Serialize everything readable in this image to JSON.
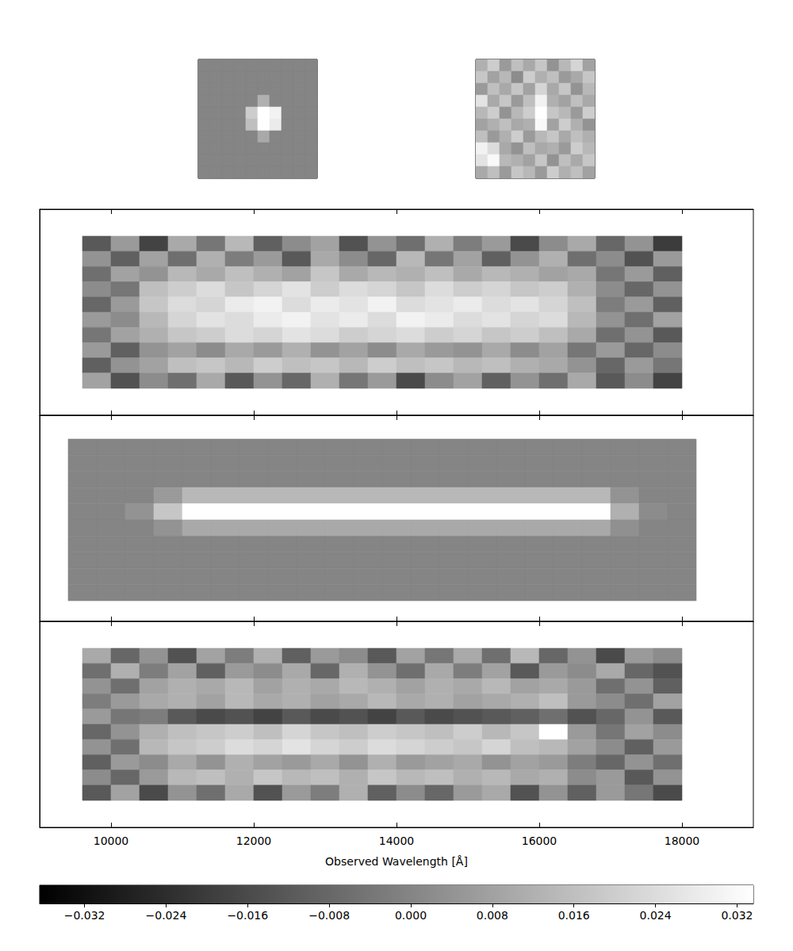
{
  "chart_data": {
    "type": "image",
    "xlabel": "Observed Wavelength [Å]",
    "xlim": [
      9000,
      19000
    ],
    "xticks": [
      10000,
      12000,
      14000,
      16000,
      18000
    ],
    "ylim": [
      0,
      13
    ],
    "tick_labels": "x",
    "colorbar": {
      "clim": [
        -0.0364,
        0.0336
      ],
      "ticks": [
        {
          "value": -0.032,
          "label": "−0.032"
        },
        {
          "value": -0.024,
          "label": "−0.024"
        },
        {
          "value": -0.016,
          "label": "−0.016"
        },
        {
          "value": -0.008,
          "label": "−0.008"
        },
        {
          "value": 0,
          "label": "0.000"
        },
        0.008,
        0.016,
        0.024,
        0.032
      ]
    },
    "stamps": [
      {
        "cells": [
          [
            0,
            0,
            0,
            0,
            0,
            0,
            0,
            0,
            0,
            0
          ],
          [
            0,
            0,
            0,
            0,
            0,
            0,
            0,
            0,
            0,
            0
          ],
          [
            0,
            0,
            0,
            0,
            0,
            0,
            0,
            0,
            0,
            0
          ],
          [
            0,
            0,
            0,
            0,
            0,
            0.012,
            0,
            0,
            0,
            0
          ],
          [
            0,
            0,
            0,
            0,
            0.02,
            0.04,
            0.03,
            0,
            0,
            0
          ],
          [
            0,
            0,
            0,
            0,
            0.016,
            0.04,
            0.028,
            0,
            0,
            0
          ],
          [
            0,
            0,
            0,
            0,
            0,
            0.01,
            0,
            0,
            0,
            0
          ],
          [
            0,
            0,
            0,
            0,
            0,
            0,
            0,
            0,
            0,
            0
          ],
          [
            0,
            0,
            0,
            0,
            0,
            0,
            0,
            0,
            0,
            0
          ],
          [
            0,
            0,
            0,
            0,
            0,
            0,
            0,
            0,
            0,
            0
          ]
        ]
      },
      {
        "cells": [
          [
            0.012,
            0.02,
            0.006,
            0.016,
            0.01,
            0.018,
            0.004,
            0.014,
            0.022,
            0.008
          ],
          [
            0.018,
            0.008,
            0.014,
            0.002,
            0.02,
            0.012,
            0.016,
            0.006,
            0.01,
            0.018
          ],
          [
            0.006,
            0.016,
            0.01,
            0.018,
            0.008,
            0.022,
            0.01,
            0.018,
            0.004,
            0.014
          ],
          [
            0.026,
            0.01,
            0.018,
            0.006,
            0.016,
            0.03,
            0.012,
            0.008,
            0.016,
            0.01
          ],
          [
            0.014,
            0.02,
            0.004,
            0.014,
            0.02,
            0.034,
            0.018,
            0.014,
            0.006,
            0.02
          ],
          [
            0.008,
            0.012,
            0.016,
            0.01,
            0.012,
            0.032,
            0.008,
            0.02,
            0.012,
            0.004
          ],
          [
            0.016,
            0.006,
            0.012,
            0.02,
            0.006,
            0.014,
            0.018,
            0.01,
            0.016,
            0.012
          ],
          [
            0.03,
            0.024,
            0.01,
            0.004,
            0.016,
            0.01,
            0.012,
            0.006,
            0.02,
            0.014
          ],
          [
            0.026,
            0.032,
            0.014,
            0.012,
            0.008,
            0.018,
            0.004,
            0.016,
            0.01,
            0.018
          ],
          [
            0.01,
            0.016,
            0.006,
            0.018,
            0.014,
            0.006,
            0.02,
            0.012,
            0.016,
            0.008
          ]
        ]
      }
    ],
    "panels": [
      {
        "extent": [
          9600,
          18000,
          1.7,
          11.3
        ],
        "cells": [
          [
            -0.012,
            0.006,
            -0.018,
            0.01,
            -0.004,
            0.014,
            -0.01,
            0.002,
            0.008,
            -0.014,
            0.004,
            -0.006,
            0.012,
            -0.002,
            0.006,
            -0.016,
            0.002,
            0.01,
            -0.008,
            0.004,
            -0.02
          ],
          [
            0.004,
            -0.01,
            0.008,
            -0.006,
            0.012,
            -0.002,
            0.006,
            -0.012,
            0.01,
            0.002,
            -0.008,
            0.014,
            -0.004,
            0.008,
            -0.01,
            0.004,
            0.012,
            -0.006,
            0.002,
            -0.014,
            0.006
          ],
          [
            -0.006,
            0.008,
            0.004,
            0.014,
            0.01,
            0.016,
            0.012,
            0.008,
            0.018,
            0.01,
            0.014,
            0.012,
            0.016,
            0.01,
            0.014,
            0.012,
            0.008,
            0.01,
            -0.004,
            0.006,
            -0.01
          ],
          [
            0.002,
            -0.004,
            0.016,
            0.02,
            0.024,
            0.018,
            0.022,
            0.026,
            0.02,
            0.024,
            0.022,
            0.018,
            0.024,
            0.02,
            0.022,
            0.018,
            0.02,
            0.012,
            0.002,
            -0.008,
            0.004
          ],
          [
            -0.008,
            0.006,
            0.018,
            0.024,
            0.022,
            0.028,
            0.03,
            0.024,
            0.028,
            0.026,
            0.03,
            0.024,
            0.026,
            0.028,
            0.024,
            0.026,
            0.022,
            0.016,
            -0.002,
            0.006,
            -0.01
          ],
          [
            0.006,
            0.002,
            0.014,
            0.022,
            0.026,
            0.024,
            0.028,
            0.03,
            0.026,
            0.028,
            0.024,
            0.03,
            0.028,
            0.024,
            0.026,
            0.022,
            0.024,
            0.014,
            0.004,
            -0.006,
            0.008
          ],
          [
            -0.004,
            0.008,
            0.012,
            0.018,
            0.02,
            0.024,
            0.022,
            0.026,
            0.024,
            0.02,
            0.022,
            0.024,
            0.02,
            0.022,
            0.018,
            0.02,
            0.016,
            0.01,
            -0.006,
            0.004,
            -0.012
          ],
          [
            0.006,
            -0.01,
            0.004,
            0.008,
            0.002,
            0.01,
            0.006,
            0.012,
            0.004,
            0.008,
            0.002,
            0.01,
            0.006,
            0.004,
            0.01,
            0.002,
            0.008,
            -0.004,
            0.006,
            -0.008,
            0.002
          ],
          [
            -0.01,
            0.004,
            0.008,
            0.016,
            0.018,
            0.014,
            0.02,
            0.016,
            0.018,
            0.014,
            0.02,
            0.016,
            0.018,
            0.014,
            0.016,
            0.012,
            0.01,
            0.004,
            -0.008,
            0.006,
            -0.004
          ],
          [
            0.008,
            -0.014,
            0.002,
            -0.006,
            0.01,
            -0.012,
            0.004,
            -0.008,
            0.012,
            -0.004,
            0.006,
            -0.016,
            0.002,
            0.008,
            -0.01,
            0.004,
            -0.006,
            0.01,
            -0.012,
            0.002,
            -0.018
          ]
        ]
      },
      {
        "extent": [
          9400,
          18200,
          1.3,
          11.5
        ],
        "cells": [
          [
            0,
            0,
            0,
            0,
            0,
            0,
            0,
            0,
            0,
            0,
            0,
            0,
            0,
            0,
            0,
            0,
            0,
            0,
            0,
            0,
            0,
            0
          ],
          [
            0,
            0,
            0,
            0,
            0,
            0,
            0,
            0,
            0,
            0,
            0,
            0,
            0,
            0,
            0,
            0,
            0,
            0,
            0,
            0,
            0,
            0
          ],
          [
            0,
            0,
            0,
            0,
            0,
            0,
            0,
            0,
            0,
            0,
            0,
            0,
            0,
            0,
            0,
            0,
            0,
            0,
            0,
            0,
            0,
            0
          ],
          [
            0,
            0,
            0,
            0.006,
            0.014,
            0.014,
            0.014,
            0.014,
            0.014,
            0.014,
            0.014,
            0.014,
            0.014,
            0.014,
            0.014,
            0.014,
            0.014,
            0.014,
            0.014,
            0.004,
            0,
            0
          ],
          [
            0,
            0,
            0.004,
            0.018,
            0.034,
            0.034,
            0.034,
            0.034,
            0.034,
            0.034,
            0.034,
            0.034,
            0.034,
            0.034,
            0.034,
            0.034,
            0.034,
            0.034,
            0.034,
            0.012,
            0.002,
            0
          ],
          [
            0,
            0,
            0,
            0.004,
            0.01,
            0.01,
            0.01,
            0.01,
            0.01,
            0.01,
            0.01,
            0.01,
            0.01,
            0.01,
            0.01,
            0.01,
            0.01,
            0.01,
            0.01,
            0.003,
            0,
            0
          ],
          [
            0,
            0,
            0,
            0,
            0,
            0,
            0,
            0,
            0,
            0,
            0,
            0,
            0,
            0,
            0,
            0,
            0,
            0,
            0,
            0,
            0,
            0
          ],
          [
            0,
            0,
            0,
            0,
            0,
            0,
            0,
            0,
            0,
            0,
            0,
            0,
            0,
            0,
            0,
            0,
            0,
            0,
            0,
            0,
            0,
            0
          ],
          [
            0,
            0,
            0,
            0,
            0,
            0,
            0,
            0,
            0,
            0,
            0,
            0,
            0,
            0,
            0,
            0,
            0,
            0,
            0,
            0,
            0,
            0
          ],
          [
            0,
            0,
            0,
            0,
            0,
            0,
            0,
            0,
            0,
            0,
            0,
            0,
            0,
            0,
            0,
            0,
            0,
            0,
            0,
            0,
            0,
            0
          ]
        ]
      },
      {
        "extent": [
          9600,
          18000,
          1.7,
          11.3
        ],
        "cells": [
          [
            0.01,
            -0.008,
            0.004,
            -0.014,
            0.008,
            -0.002,
            0.012,
            -0.01,
            0.006,
            0.002,
            -0.012,
            0.008,
            -0.004,
            0.01,
            -0.006,
            0.014,
            -0.008,
            0.004,
            -0.016,
            0.006,
            0.002
          ],
          [
            -0.006,
            0.012,
            -0.002,
            0.008,
            -0.01,
            0.006,
            0.002,
            0.01,
            -0.008,
            0.012,
            0.004,
            -0.006,
            0.01,
            -0.002,
            0.008,
            -0.012,
            0.006,
            0.002,
            0.01,
            -0.008,
            -0.014
          ],
          [
            0.004,
            -0.006,
            0.008,
            0.012,
            0.01,
            0.014,
            0.008,
            0.012,
            0.01,
            0.014,
            0.012,
            0.008,
            0.012,
            0.01,
            0.014,
            0.008,
            0.01,
            0.006,
            -0.006,
            0.004,
            -0.01
          ],
          [
            -0.002,
            0.006,
            0.01,
            0.012,
            0.008,
            0.014,
            0.01,
            0.012,
            0.008,
            0.01,
            0.014,
            0.01,
            0.012,
            0.008,
            0.01,
            0.012,
            0.016,
            0.006,
            0.002,
            -0.006,
            0.008
          ],
          [
            0.006,
            -0.004,
            -0.002,
            -0.012,
            -0.016,
            -0.014,
            -0.018,
            -0.012,
            -0.016,
            -0.014,
            -0.018,
            -0.012,
            -0.016,
            -0.014,
            -0.012,
            -0.01,
            -0.006,
            -0.014,
            -0.008,
            0.004,
            -0.012
          ],
          [
            -0.008,
            0.004,
            0.012,
            0.016,
            0.018,
            0.02,
            0.016,
            0.022,
            0.018,
            0.016,
            0.02,
            0.018,
            0.016,
            0.02,
            0.014,
            0.018,
            0.034,
            0.006,
            -0.004,
            0.008,
            0.002
          ],
          [
            0.004,
            -0.006,
            0.014,
            0.018,
            0.02,
            0.024,
            0.022,
            0.026,
            0.022,
            0.02,
            0.024,
            0.022,
            0.02,
            0.018,
            0.022,
            0.016,
            0.014,
            0.008,
            0.002,
            -0.01,
            0.006
          ],
          [
            -0.01,
            0.006,
            0.002,
            0.01,
            0.004,
            0.012,
            0.008,
            0.006,
            0.01,
            0.004,
            0.012,
            0.006,
            0.008,
            0.01,
            0.004,
            0.008,
            0.006,
            -0.002,
            -0.008,
            0.004,
            -0.006
          ],
          [
            0.002,
            -0.008,
            0.006,
            0.014,
            0.016,
            0.012,
            0.018,
            0.014,
            0.016,
            0.012,
            0.018,
            0.014,
            0.016,
            0.012,
            0.014,
            0.01,
            0.012,
            0.002,
            0.006,
            -0.012,
            0.004
          ],
          [
            -0.012,
            0.008,
            -0.016,
            0.004,
            -0.006,
            0.01,
            -0.014,
            0.006,
            -0.002,
            0.012,
            -0.01,
            0.002,
            -0.008,
            0.006,
            0.01,
            -0.014,
            0.004,
            -0.01,
            0.006,
            -0.004,
            -0.016
          ]
        ]
      }
    ]
  }
}
